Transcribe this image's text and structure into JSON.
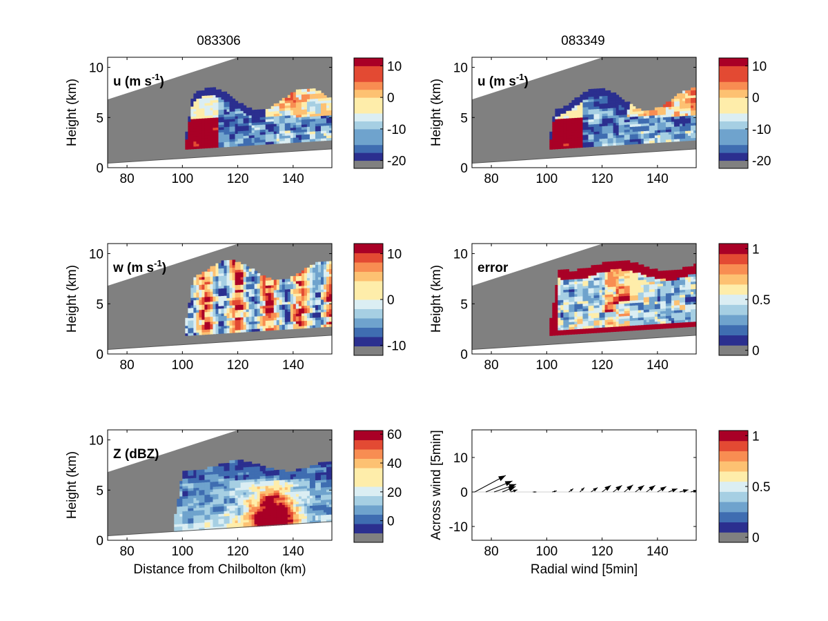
{
  "figure": {
    "titles": [
      "083306",
      "083349"
    ]
  },
  "colormaps": {
    "rdylbu10": [
      "#2b2f8f",
      "#3f6db1",
      "#6fa3cd",
      "#a6cfe3",
      "#dbeef3",
      "#feedaa",
      "#fdc172",
      "#f88d52",
      "#e34a33",
      "#a90026"
    ],
    "mask": "#808080"
  },
  "chart_data": [
    {
      "type": "heatmap",
      "panel": "u",
      "column": 0,
      "row": 0,
      "title": "083306",
      "label_main": "u (m s",
      "label_sup": "-1",
      "label_end": ")",
      "xlabel": "",
      "ylabel": "Height (km)",
      "xlim": [
        73,
        154
      ],
      "ylim": [
        0,
        11
      ],
      "xticks": [
        "80",
        "100",
        "120",
        "140"
      ],
      "xtick_values": [
        80,
        100,
        120,
        140
      ],
      "yticks": [
        "0",
        "5",
        "10"
      ],
      "ytick_values": [
        0,
        5,
        10
      ],
      "colorbar": {
        "ticks": [
          "10",
          "0",
          "-10",
          "-20"
        ],
        "tick_values": [
          10,
          0,
          -10,
          -20
        ],
        "range": [
          -22.5,
          12.5
        ],
        "steps": 14
      },
      "field_range": [
        -10,
        0
      ],
      "coverage_km": [
        101,
        154
      ],
      "echo_top_km": [
        5.6,
        7.8
      ],
      "blank_below_ground": true
    },
    {
      "type": "heatmap",
      "panel": "u",
      "column": 1,
      "row": 0,
      "title": "083349",
      "label_main": "u (m s",
      "label_sup": "-1",
      "label_end": ")",
      "xlabel": "",
      "ylabel": "Height (km)",
      "xlim": [
        73,
        154
      ],
      "ylim": [
        0,
        11
      ],
      "xticks": [
        "80",
        "100",
        "120",
        "140"
      ],
      "xtick_values": [
        80,
        100,
        120,
        140
      ],
      "yticks": [
        "0",
        "5",
        "10"
      ],
      "ytick_values": [
        0,
        5,
        10
      ],
      "colorbar": {
        "ticks": [
          "10",
          "0",
          "-10",
          "-20"
        ],
        "tick_values": [
          10,
          0,
          -10,
          -20
        ],
        "range": [
          -22.5,
          12.5
        ],
        "steps": 14
      },
      "field_range": [
        -10,
        0
      ],
      "coverage_km": [
        101,
        154
      ],
      "echo_top_km": [
        5.6,
        7.8
      ],
      "blank_below_ground": true
    },
    {
      "type": "heatmap",
      "panel": "w",
      "column": 0,
      "row": 1,
      "label_main": "w (m s",
      "label_sup": "-1",
      "label_end": ")",
      "xlabel": "",
      "ylabel": "Height (km)",
      "xlim": [
        73,
        154
      ],
      "ylim": [
        0,
        11
      ],
      "xticks": [
        "80",
        "100",
        "120",
        "140"
      ],
      "xtick_values": [
        80,
        100,
        120,
        140
      ],
      "yticks": [
        "0",
        "5",
        "10"
      ],
      "ytick_values": [
        0,
        5,
        10
      ],
      "colorbar": {
        "ticks": [
          "10",
          "0",
          "-10"
        ],
        "tick_values": [
          10,
          0,
          -10
        ],
        "range": [
          -12.2,
          12.2
        ],
        "steps": 12
      },
      "field_range": [
        -10,
        10
      ],
      "coverage_km": [
        101,
        154
      ],
      "echo_top_km": [
        7.2,
        9.2
      ],
      "blank_below_ground": true
    },
    {
      "type": "heatmap",
      "panel": "error",
      "column": 1,
      "row": 1,
      "label_main": "error",
      "label_sup": "",
      "label_end": "",
      "xlabel": "",
      "ylabel": "Height (km)",
      "xlim": [
        73,
        154
      ],
      "ylim": [
        0,
        11
      ],
      "xticks": [
        "80",
        "100",
        "120",
        "140"
      ],
      "xtick_values": [
        80,
        100,
        120,
        140
      ],
      "yticks": [
        "0",
        "5",
        "10"
      ],
      "ytick_values": [
        0,
        5,
        10
      ],
      "colorbar": {
        "ticks": [
          "1",
          "0.5",
          "0"
        ],
        "tick_values": [
          1,
          0.5,
          0
        ],
        "range": [
          -0.05,
          1.05
        ],
        "steps": 11
      },
      "field_range": [
        0,
        1
      ],
      "coverage_km": [
        101,
        154
      ],
      "echo_top_km": [
        8.2,
        9.2
      ],
      "blank_below_ground": true
    },
    {
      "type": "heatmap",
      "panel": "Z",
      "column": 0,
      "row": 2,
      "label_main": "Z (dBZ)",
      "label_sup": "",
      "label_end": "",
      "xlabel": "Distance from Chilbolton (km)",
      "ylabel": "Height (km)",
      "xlim": [
        73,
        154
      ],
      "ylim": [
        0,
        11
      ],
      "xticks": [
        "80",
        "100",
        "120",
        "140"
      ],
      "xtick_values": [
        80,
        100,
        120,
        140
      ],
      "yticks": [
        "0",
        "5",
        "10"
      ],
      "ytick_values": [
        0,
        5,
        10
      ],
      "colorbar": {
        "ticks": [
          "60",
          "40",
          "20",
          "0"
        ],
        "tick_values": [
          60,
          40,
          20,
          0
        ],
        "range": [
          -15,
          62.5
        ],
        "steps": 12
      },
      "field_range": [
        -5,
        45
      ],
      "coverage_km": [
        97,
        154
      ],
      "echo_top_km": [
        6.8,
        7.8
      ],
      "blank_below_ground": true
    },
    {
      "type": "scatter",
      "panel": "vectors",
      "column": 1,
      "row": 2,
      "xlabel": "Radial wind [5min]",
      "ylabel": "Across wind [5min]",
      "xlim": [
        73,
        154
      ],
      "ylim": [
        -14,
        18
      ],
      "xticks": [
        "80",
        "100",
        "120",
        "140"
      ],
      "xtick_values": [
        80,
        100,
        120,
        140
      ],
      "yticks": [
        "10",
        "0",
        "-10"
      ],
      "ytick_values": [
        10,
        0,
        -10
      ],
      "colorbar": {
        "ticks": [
          "1",
          "0.5",
          "0"
        ],
        "tick_values": [
          1,
          0.5,
          0
        ],
        "range": [
          -0.05,
          1.05
        ],
        "steps": 11
      },
      "arrows": [
        {
          "x": 74,
          "y": 0,
          "u": 7,
          "v": 3
        },
        {
          "x": 78,
          "y": 0,
          "u": 6,
          "v": 2
        },
        {
          "x": 81,
          "y": 0,
          "u": 5,
          "v": 1.4
        },
        {
          "x": 84,
          "y": 0,
          "u": 3,
          "v": 1.0
        },
        {
          "x": 87,
          "y": 0,
          "u": 1.5,
          "v": 0.4
        },
        {
          "x": 95,
          "y": 0,
          "u": 0.8,
          "v": 0
        },
        {
          "x": 102,
          "y": 0,
          "u": 1,
          "v": 0.2
        },
        {
          "x": 108,
          "y": 0,
          "u": 1,
          "v": 0.6
        },
        {
          "x": 112,
          "y": 0,
          "u": 1,
          "v": 0.8
        },
        {
          "x": 116,
          "y": 0,
          "u": 1.5,
          "v": 0.8
        },
        {
          "x": 120,
          "y": 0,
          "u": 2,
          "v": 1.2
        },
        {
          "x": 124,
          "y": 0,
          "u": 2,
          "v": 1.2
        },
        {
          "x": 128,
          "y": 0,
          "u": 2,
          "v": 1.3
        },
        {
          "x": 132,
          "y": 0,
          "u": 2,
          "v": 1.2
        },
        {
          "x": 136,
          "y": 0,
          "u": 2,
          "v": 1.2
        },
        {
          "x": 140,
          "y": 0,
          "u": 2,
          "v": 1.0
        },
        {
          "x": 144,
          "y": 0,
          "u": 2,
          "v": 0.6
        },
        {
          "x": 148,
          "y": 0,
          "u": 2,
          "v": 0.4
        },
        {
          "x": 152,
          "y": 0,
          "u": 1.5,
          "v": 0.3
        }
      ]
    }
  ]
}
